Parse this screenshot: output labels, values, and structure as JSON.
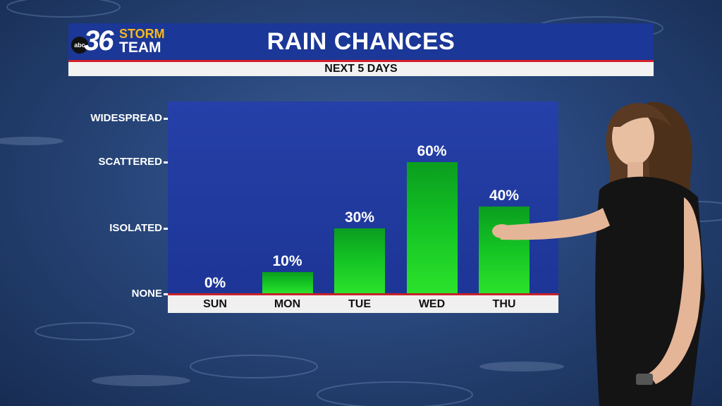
{
  "header": {
    "logo_badge": "abc",
    "logo_number": "36",
    "logo_word1": "STORM",
    "logo_word2": "TEAM",
    "title": "RAIN CHANCES",
    "subtitle": "NEXT 5 DAYS"
  },
  "colors": {
    "header_blue": "#1b3797",
    "accent_red": "#d21f2b",
    "bar_green": "#14c524",
    "plot_blue": "#2540a8"
  },
  "chart_data": {
    "type": "bar",
    "title": "RAIN CHANCES",
    "subtitle": "NEXT 5 DAYS",
    "categories": [
      "SUN",
      "MON",
      "TUE",
      "WED",
      "THU"
    ],
    "values": [
      0,
      10,
      30,
      60,
      40
    ],
    "value_labels": [
      "0%",
      "10%",
      "30%",
      "60%",
      "40%"
    ],
    "y_categories": [
      "WIDESPREAD",
      "SCATTERED",
      "ISOLATED",
      "NONE"
    ],
    "y_category_values": [
      80,
      60,
      30,
      0
    ],
    "ylim": [
      0,
      80
    ],
    "grid": false,
    "legend": "none"
  }
}
